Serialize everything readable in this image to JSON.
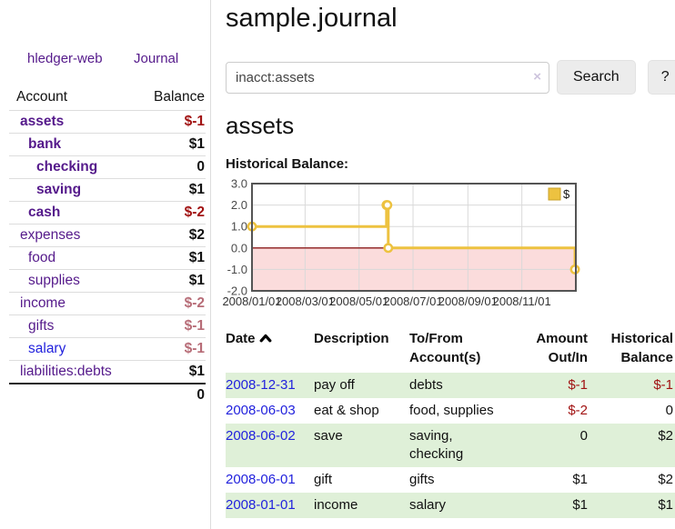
{
  "sidebar": {
    "brand": "hledger-web",
    "journal_link": "Journal",
    "table": {
      "header_account": "Account",
      "header_balance": "Balance",
      "rows": [
        {
          "label": "assets",
          "balance": "$-1",
          "depth": 1,
          "bold": true,
          "balance_tone": "negative-strong"
        },
        {
          "label": "bank",
          "balance": "$1",
          "depth": 2,
          "bold": true,
          "balance_tone": "normal"
        },
        {
          "label": "checking",
          "balance": "0",
          "depth": 3,
          "bold": true,
          "balance_tone": "normal"
        },
        {
          "label": "saving",
          "balance": "$1",
          "depth": 3,
          "bold": true,
          "balance_tone": "normal"
        },
        {
          "label": "cash",
          "balance": "$-2",
          "depth": 2,
          "bold": true,
          "balance_tone": "negative-strong"
        },
        {
          "label": "expenses",
          "balance": "$2",
          "depth": 1,
          "bold": false,
          "balance_tone": "normal"
        },
        {
          "label": "food",
          "balance": "$1",
          "depth": 2,
          "bold": false,
          "balance_tone": "normal"
        },
        {
          "label": "supplies",
          "balance": "$1",
          "depth": 2,
          "bold": false,
          "balance_tone": "normal"
        },
        {
          "label": "income",
          "balance": "$-2",
          "depth": 1,
          "bold": false,
          "balance_tone": "negative-soft"
        },
        {
          "label": "gifts",
          "balance": "$-1",
          "depth": 2,
          "bold": false,
          "balance_tone": "negative-soft"
        },
        {
          "label": "salary",
          "balance": "$-1",
          "depth": 2,
          "bold": false,
          "balance_tone": "negative-soft",
          "link_color": "#2222dd"
        },
        {
          "label": "liabilities:debts",
          "balance": "$1",
          "depth": 1,
          "bold": false,
          "balance_tone": "normal"
        }
      ],
      "total": "0"
    }
  },
  "main": {
    "title": "sample.journal",
    "search": {
      "value": "inacct:assets",
      "clear_icon": "×",
      "search_button": "Search",
      "help_button": "?"
    },
    "account_heading": "assets",
    "section_label": "Historical Balance:"
  },
  "chart_data": {
    "type": "line",
    "title": "Historical Balance",
    "series": [
      {
        "name": "$",
        "color": "#edc240",
        "step": true,
        "points": [
          [
            "2008-01-01",
            1
          ],
          [
            "2008-06-01",
            2
          ],
          [
            "2008-06-02",
            2
          ],
          [
            "2008-06-03",
            0
          ],
          [
            "2008-12-31",
            -1
          ]
        ]
      }
    ],
    "x_tick_labels": [
      "2008/01/01",
      "2008/03/01",
      "2008/05/01",
      "2008/07/01",
      "2008/09/01",
      "2008/11/01"
    ],
    "x_tick_days": [
      0,
      60,
      121,
      182,
      244,
      305
    ],
    "x_range_days": [
      0,
      366
    ],
    "y_ticks": [
      3.0,
      2.0,
      1.0,
      0.0,
      -1.0,
      -2.0
    ],
    "ylim": [
      -2,
      3
    ],
    "grid": true,
    "legend_position": "top-right",
    "legend_label": "$",
    "negative_region_color": "#fbdcdc",
    "zero_line_color": "#8b1a1a",
    "grid_color": "#d9d9d9",
    "border_color": "#545454",
    "tick_text_color": "#4a4a4a"
  },
  "register": {
    "headers": {
      "date": "Date",
      "description": "Description",
      "tofrom": "To/From Account(s)",
      "amount": "Amount Out/In",
      "balance": "Historical Balance"
    },
    "rows": [
      {
        "date": "2008-12-31",
        "description": "pay off",
        "accounts": "debts",
        "amount": "$-1",
        "balance": "$-1"
      },
      {
        "date": "2008-06-03",
        "description": "eat & shop",
        "accounts": "food, supplies",
        "amount": "$-2",
        "balance": "0"
      },
      {
        "date": "2008-06-02",
        "description": "save",
        "accounts": "saving, checking",
        "amount": "0",
        "balance": "$2"
      },
      {
        "date": "2008-06-01",
        "description": "gift",
        "accounts": "gifts",
        "amount": "$1",
        "balance": "$2"
      },
      {
        "date": "2008-01-01",
        "description": "income",
        "accounts": "salary",
        "amount": "$1",
        "balance": "$1"
      }
    ],
    "colors": {
      "negative": "#a11212",
      "date_link": "#2222dd",
      "stripe": "#dff0d8"
    }
  }
}
